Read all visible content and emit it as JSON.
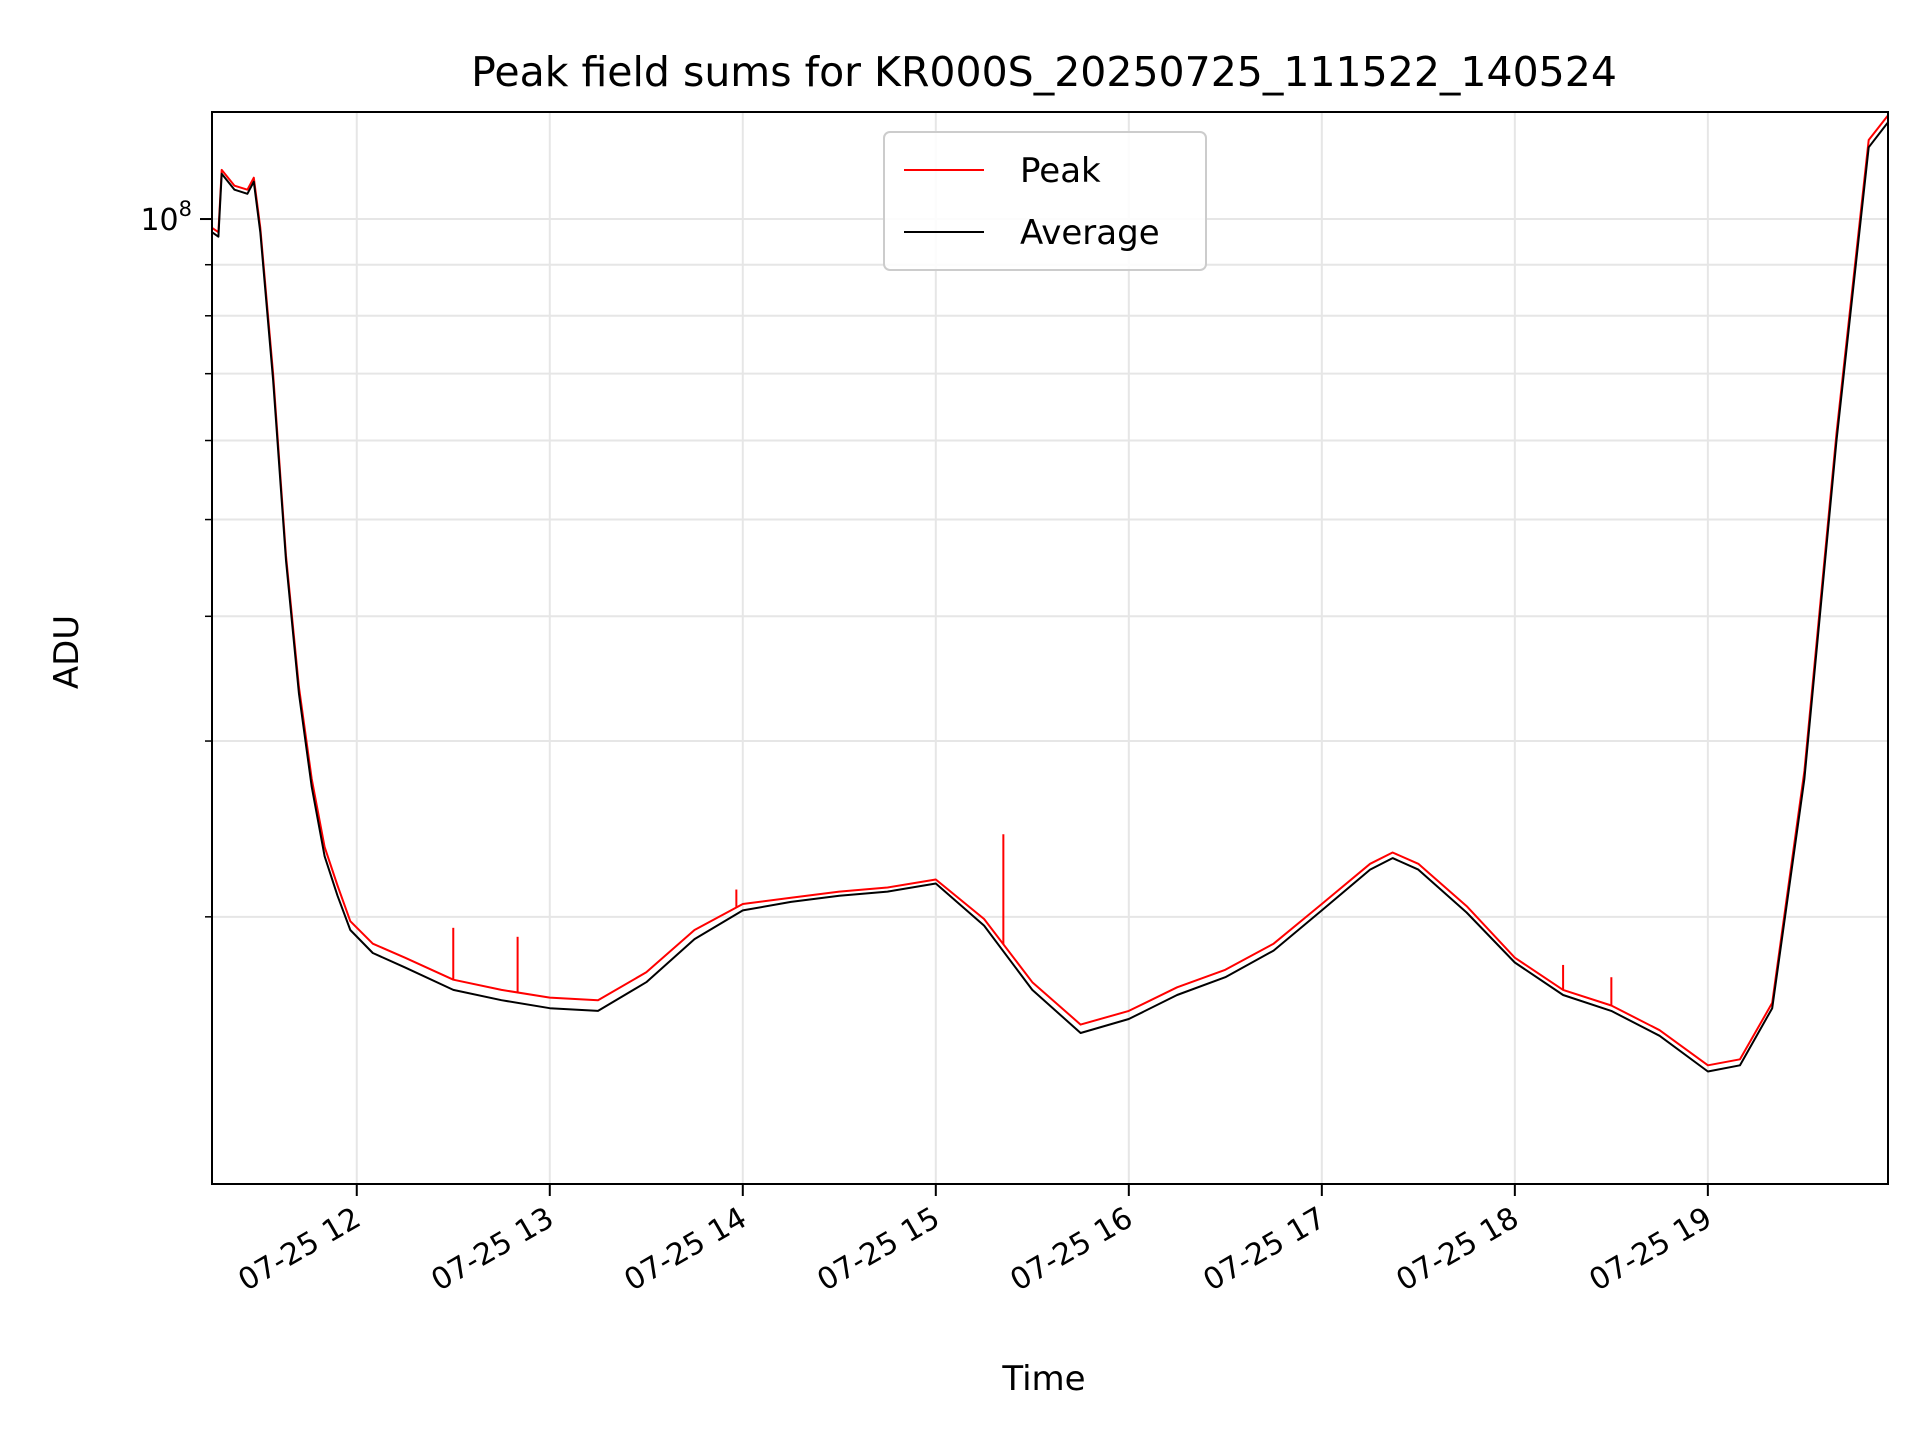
{
  "chart_data": {
    "type": "line",
    "title": "Peak field sums for KR000S_20250725_111522_140524",
    "xlabel": "Time",
    "ylabel": "ADU",
    "yscale": "log",
    "xlim": [
      "2025-07-25 11:15",
      "2025-07-25 19:56"
    ],
    "ylim": [
      10800000,
      128000000
    ],
    "grid": true,
    "legend_position": "upper center",
    "x_ticks": [
      {
        "value": "2025-07-25 12:00",
        "label": "07-25 12"
      },
      {
        "value": "2025-07-25 13:00",
        "label": "07-25 13"
      },
      {
        "value": "2025-07-25 14:00",
        "label": "07-25 14"
      },
      {
        "value": "2025-07-25 15:00",
        "label": "07-25 15"
      },
      {
        "value": "2025-07-25 16:00",
        "label": "07-25 16"
      },
      {
        "value": "2025-07-25 17:00",
        "label": "07-25 17"
      },
      {
        "value": "2025-07-25 18:00",
        "label": "07-25 18"
      },
      {
        "value": "2025-07-25 19:00",
        "label": "07-25 19"
      }
    ],
    "y_ticks": [
      {
        "value": 100000000,
        "base": "10",
        "exp": "8"
      }
    ],
    "y_minor_ticks": [
      20000000,
      30000000,
      40000000,
      50000000,
      60000000,
      70000000,
      80000000,
      90000000
    ],
    "series": [
      {
        "name": "Peak",
        "color": "#ff0000",
        "x": [
          "2025-07-25 11:15",
          "2025-07-25 11:17",
          "2025-07-25 11:18",
          "2025-07-25 11:22",
          "2025-07-25 11:26",
          "2025-07-25 11:28",
          "2025-07-25 11:30",
          "2025-07-25 11:34",
          "2025-07-25 11:38",
          "2025-07-25 11:42",
          "2025-07-25 11:46",
          "2025-07-25 11:50",
          "2025-07-25 11:54",
          "2025-07-25 11:58",
          "2025-07-25 12:05",
          "2025-07-25 12:15",
          "2025-07-25 12:30",
          "2025-07-25 12:45",
          "2025-07-25 13:00",
          "2025-07-25 13:15",
          "2025-07-25 13:30",
          "2025-07-25 13:45",
          "2025-07-25 14:00",
          "2025-07-25 14:15",
          "2025-07-25 14:30",
          "2025-07-25 14:45",
          "2025-07-25 15:00",
          "2025-07-25 15:15",
          "2025-07-25 15:30",
          "2025-07-25 15:45",
          "2025-07-25 16:00",
          "2025-07-25 16:15",
          "2025-07-25 16:30",
          "2025-07-25 16:45",
          "2025-07-25 17:00",
          "2025-07-25 17:15",
          "2025-07-25 17:22",
          "2025-07-25 17:30",
          "2025-07-25 17:45",
          "2025-07-25 18:00",
          "2025-07-25 18:15",
          "2025-07-25 18:30",
          "2025-07-25 18:45",
          "2025-07-25 19:00",
          "2025-07-25 19:10",
          "2025-07-25 19:20",
          "2025-07-25 19:30",
          "2025-07-25 19:40",
          "2025-07-25 19:50",
          "2025-07-25 19:56"
        ],
        "values": [
          98000000,
          97000000,
          112000000,
          108000000,
          107000000,
          110000000,
          98000000,
          70000000,
          46000000,
          34000000,
          27500000,
          23500000,
          21500000,
          19800000,
          18800000,
          18200000,
          17300000,
          16900000,
          16600000,
          16500000,
          17600000,
          19400000,
          20600000,
          20900000,
          21200000,
          21400000,
          21800000,
          19900000,
          17200000,
          15600000,
          16100000,
          17000000,
          17700000,
          18800000,
          20600000,
          22600000,
          23200000,
          22600000,
          20500000,
          18200000,
          16900000,
          16300000,
          15400000,
          14200000,
          14400000,
          16400000,
          28000000,
          61000000,
          120000000,
          127000000
        ]
      },
      {
        "name": "Average",
        "color": "#000000",
        "x": [
          "2025-07-25 11:15",
          "2025-07-25 11:17",
          "2025-07-25 11:18",
          "2025-07-25 11:22",
          "2025-07-25 11:26",
          "2025-07-25 11:28",
          "2025-07-25 11:30",
          "2025-07-25 11:34",
          "2025-07-25 11:38",
          "2025-07-25 11:42",
          "2025-07-25 11:46",
          "2025-07-25 11:50",
          "2025-07-25 11:54",
          "2025-07-25 11:58",
          "2025-07-25 12:05",
          "2025-07-25 12:15",
          "2025-07-25 12:30",
          "2025-07-25 12:45",
          "2025-07-25 13:00",
          "2025-07-25 13:15",
          "2025-07-25 13:30",
          "2025-07-25 13:45",
          "2025-07-25 14:00",
          "2025-07-25 14:15",
          "2025-07-25 14:30",
          "2025-07-25 14:45",
          "2025-07-25 15:00",
          "2025-07-25 15:15",
          "2025-07-25 15:30",
          "2025-07-25 15:45",
          "2025-07-25 16:00",
          "2025-07-25 16:15",
          "2025-07-25 16:30",
          "2025-07-25 16:45",
          "2025-07-25 17:00",
          "2025-07-25 17:15",
          "2025-07-25 17:22",
          "2025-07-25 17:30",
          "2025-07-25 17:45",
          "2025-07-25 18:00",
          "2025-07-25 18:15",
          "2025-07-25 18:30",
          "2025-07-25 18:45",
          "2025-07-25 19:00",
          "2025-07-25 19:10",
          "2025-07-25 19:20",
          "2025-07-25 19:30",
          "2025-07-25 19:40",
          "2025-07-25 19:50",
          "2025-07-25 19:56"
        ],
        "values": [
          97000000,
          96000000,
          111000000,
          107000000,
          106000000,
          109000000,
          97000000,
          69000000,
          45500000,
          33500000,
          27000000,
          23000000,
          21000000,
          19400000,
          18400000,
          17800000,
          16900000,
          16500000,
          16200000,
          16100000,
          17200000,
          19000000,
          20300000,
          20700000,
          21000000,
          21200000,
          21600000,
          19600000,
          16900000,
          15300000,
          15800000,
          16700000,
          17400000,
          18500000,
          20300000,
          22300000,
          22900000,
          22300000,
          20200000,
          18000000,
          16700000,
          16100000,
          15200000,
          14000000,
          14200000,
          16200000,
          27500000,
          60000000,
          118000000,
          125000000
        ]
      }
    ],
    "annotations": [
      {
        "series": "Peak",
        "x": "2025-07-25 12:30",
        "value": 19500000
      },
      {
        "series": "Peak",
        "x": "2025-07-25 12:50",
        "value": 19100000
      },
      {
        "series": "Peak",
        "x": "2025-07-25 13:58",
        "value": 21300000
      },
      {
        "series": "Peak",
        "x": "2025-07-25 15:21",
        "value": 24200000
      },
      {
        "series": "Peak",
        "x": "2025-07-25 18:15",
        "value": 17900000
      },
      {
        "series": "Peak",
        "x": "2025-07-25 18:30",
        "value": 17400000
      }
    ]
  }
}
